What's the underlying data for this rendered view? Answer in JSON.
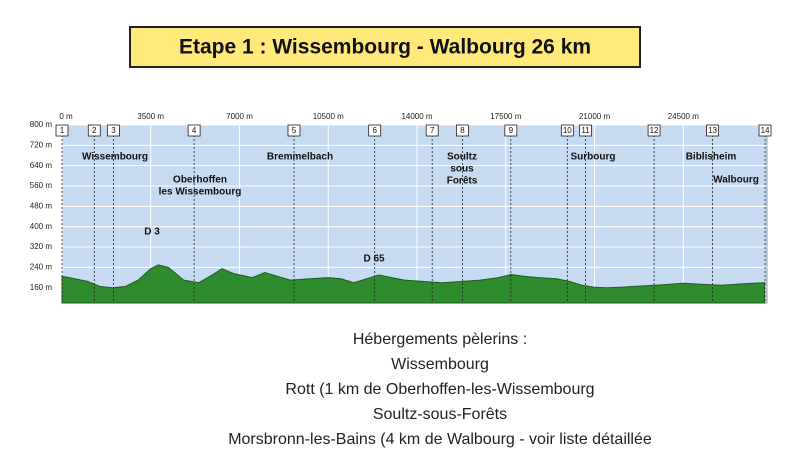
{
  "chart_data": {
    "type": "area",
    "title": "Etape 1 : Wissembourg - Walbourg  26 km",
    "x": [
      0,
      500,
      1000,
      1500,
      2000,
      2500,
      3000,
      3500,
      3800,
      4200,
      4800,
      5400,
      6000,
      6300,
      6800,
      7500,
      8000,
      8500,
      9000,
      9800,
      10500,
      11000,
      11500,
      12000,
      12500,
      13000,
      13500,
      14200,
      15000,
      15800,
      16500,
      17200,
      17700,
      18200,
      18800,
      19500,
      20000,
      20500,
      21000,
      21500,
      22200,
      23000,
      23700,
      24500,
      25200,
      26000,
      26800,
      27700
    ],
    "values": [
      205,
      195,
      185,
      165,
      160,
      165,
      190,
      235,
      250,
      240,
      190,
      180,
      215,
      235,
      215,
      200,
      220,
      205,
      190,
      195,
      200,
      195,
      180,
      195,
      210,
      200,
      190,
      185,
      180,
      185,
      190,
      200,
      212,
      205,
      200,
      195,
      185,
      170,
      162,
      160,
      163,
      168,
      172,
      178,
      174,
      170,
      175,
      180
    ],
    "color": "#2e8b2e",
    "xlim": [
      0,
      27800
    ],
    "ylim": [
      100,
      800
    ],
    "xticks": [
      {
        "value": 0,
        "label": "0 m"
      },
      {
        "value": 3500,
        "label": "3500 m"
      },
      {
        "value": 7000,
        "label": "7000 m"
      },
      {
        "value": 10500,
        "label": "10500 m"
      },
      {
        "value": 14000,
        "label": "14000 m"
      },
      {
        "value": 17500,
        "label": "17500 m"
      },
      {
        "value": 21000,
        "label": "21000 m"
      },
      {
        "value": 24500,
        "label": "24500 m"
      }
    ],
    "yticks": [
      {
        "value": 800,
        "label": "800 m"
      },
      {
        "value": 720,
        "label": "720 m"
      },
      {
        "value": 640,
        "label": "640 m"
      },
      {
        "value": 560,
        "label": "560 m"
      },
      {
        "value": 480,
        "label": "480 m"
      },
      {
        "value": 400,
        "label": "400 m"
      },
      {
        "value": 320,
        "label": "320 m"
      },
      {
        "value": 240,
        "label": "240 m"
      },
      {
        "value": 160,
        "label": "160 m"
      }
    ],
    "grid": true,
    "waypoints": [
      {
        "label": "1",
        "x": 0
      },
      {
        "label": "2",
        "x": 1273
      },
      {
        "label": "3",
        "x": 2028
      },
      {
        "label": "4",
        "x": 5210
      },
      {
        "label": "5",
        "x": 9148
      },
      {
        "label": "6",
        "x": 12330
      },
      {
        "label": "7",
        "x": 14597
      },
      {
        "label": "8",
        "x": 15790
      },
      {
        "label": "9",
        "x": 17699
      },
      {
        "label": "10",
        "x": 19926
      },
      {
        "label": "11",
        "x": 20642
      },
      {
        "label": "12",
        "x": 23347
      },
      {
        "label": "13",
        "x": 25653
      },
      {
        "label": "14",
        "x": 27722
      }
    ],
    "places": [
      [
        "Wissembourg"
      ],
      [
        "Oberhoffen",
        "les Wissembourg"
      ],
      [
        "Bremmelbach"
      ],
      [
        "Soultz",
        "sous",
        "Forêts"
      ],
      [
        "Surbourg"
      ],
      [
        "Biblisheim"
      ],
      [
        "Walbourg"
      ],
      [
        "D 3"
      ],
      [
        "D 65"
      ]
    ],
    "notes": [
      "Hébergements pèlerins :",
      "Wissembourg",
      "Rott (1 km de Oberhoffen-les-Wissembourg",
      "Soultz-sous-Forêts",
      "Morsbronn-les-Bains (4 km de Walbourg - voir liste détaillée"
    ]
  }
}
